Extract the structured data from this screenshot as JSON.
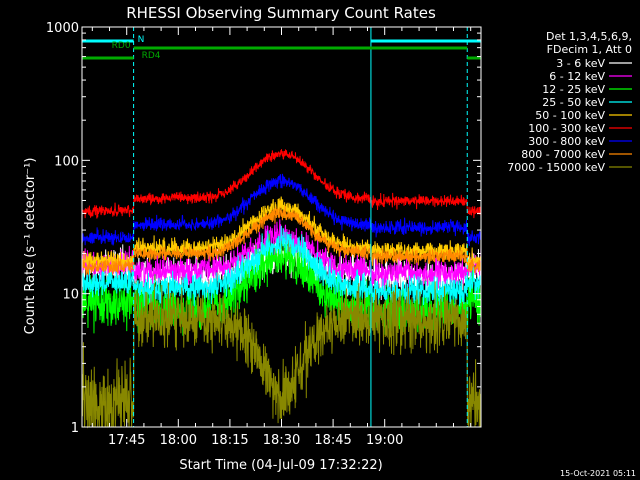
{
  "chart_data": {
    "type": "line",
    "title": "RHESSI Observing Summary Count Rates",
    "xlabel": "Start Time (04-Jul-09 17:32:22)",
    "ylabel": "Count Rate (s⁻¹ detector⁻¹)",
    "yscale": "log",
    "ylim": [
      1,
      1000
    ],
    "xlim_min": [
      1052,
      1168
    ],
    "x_ticks": [
      "17:45",
      "18:00",
      "18:15",
      "18:30",
      "18:45",
      "19:00"
    ],
    "x_tick_minutes": [
      1065,
      1080,
      1095,
      1110,
      1125,
      1140
    ],
    "y_ticks": [
      "1",
      "10",
      "100",
      "1000"
    ],
    "y_tick_values": [
      1,
      10,
      100,
      1000
    ],
    "legend_position": "top-right",
    "legend_header": [
      "Det 1,3,4,5,6,9,",
      "FDecim 1, Att 0"
    ],
    "series": [
      {
        "name": "3 - 6 keV",
        "color": "#ffffff",
        "level": 14,
        "peak": 20,
        "noise": 0.08
      },
      {
        "name": "6 - 12 keV",
        "color": "#ff00ff",
        "level": 15,
        "peak": 27,
        "noise": 0.06
      },
      {
        "name": "12 - 25 keV",
        "color": "#00ff00",
        "level": 8,
        "peak": 18,
        "noise": 0.1
      },
      {
        "name": "25 - 50 keV",
        "color": "#00ffff",
        "level": 11,
        "peak": 24,
        "noise": 0.06
      },
      {
        "name": "50 - 100 keV",
        "color": "#ffcc00",
        "level": 22,
        "peak": 45,
        "noise": 0.04
      },
      {
        "name": "100 - 300 keV",
        "color": "#ff0000",
        "level": 52,
        "peak": 112,
        "noise": 0.025
      },
      {
        "name": "300 - 800 keV",
        "color": "#0000ff",
        "level": 33,
        "peak": 70,
        "noise": 0.03
      },
      {
        "name": "800 - 7000 keV",
        "color": "#ff8800",
        "level": 20,
        "peak": 40,
        "noise": 0.03
      },
      {
        "name": "7000 - 15000 keV",
        "color": "#888800",
        "level": 6.5,
        "peak": 1.6,
        "noise": 0.08
      }
    ],
    "flags": [
      {
        "label": "N",
        "color": "#00ffff",
        "segments": [
          [
            1052,
            1067
          ],
          [
            1136,
            1168
          ]
        ]
      },
      {
        "label": "RD0",
        "color": "#00aa00",
        "segments": [
          [
            1067,
            1164
          ]
        ]
      },
      {
        "label": "RD4",
        "color": "#00aa00",
        "segments": [
          [
            1052,
            1067
          ],
          [
            1164,
            1168
          ]
        ]
      }
    ],
    "vertical_markers_minutes": [
      1067,
      1136,
      1164
    ],
    "vertical_markers_solid": [
      1136
    ],
    "footer": "15-Oct-2021 05:11"
  }
}
